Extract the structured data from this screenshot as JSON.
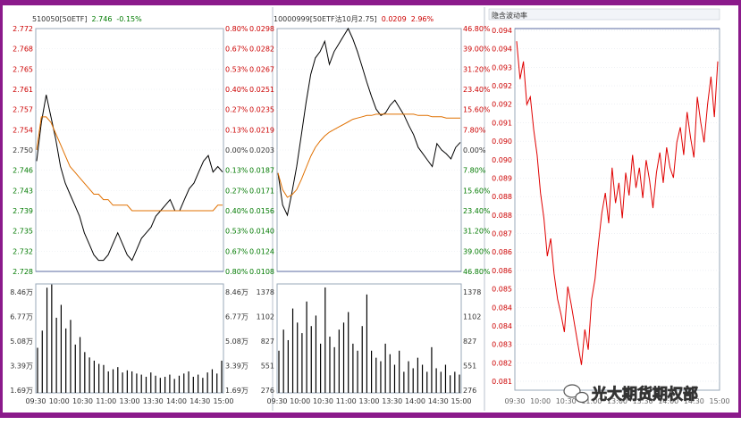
{
  "colors": {
    "frame": "#8b1a8b",
    "axis_red": "#cc0000",
    "axis_green": "#007a00",
    "axis_dark": "#333333",
    "price_line": "#000000",
    "avg_line": "#e07000",
    "vol_bar": "#000000",
    "iv_line": "#e00000",
    "grid": "#9aa8b8"
  },
  "watermark": {
    "icon": "wechat-icon",
    "text": "光大期货期权部"
  },
  "chart_data": [
    {
      "type": "line",
      "panel": "50ETF-intraday",
      "header": {
        "code": "510050[50ETF]",
        "price": "2.746",
        "change": "-0.15%"
      },
      "y_left_ticks": [
        "2.772",
        "2.768",
        "2.765",
        "2.761",
        "2.757",
        "2.754",
        "2.750",
        "2.746",
        "2.743",
        "2.739",
        "2.735",
        "2.732",
        "2.728"
      ],
      "y_right_ticks": [
        "0.80%",
        "0.67%",
        "0.53%",
        "0.40%",
        "0.27%",
        "0.13%",
        "0.00%",
        "0.13%",
        "0.27%",
        "0.40%",
        "0.53%",
        "0.67%",
        "0.80%"
      ],
      "ylim": [
        2.728,
        2.772
      ],
      "prev_close": 2.75,
      "series": [
        {
          "role": "price",
          "values": [
            2.748,
            2.755,
            2.76,
            2.756,
            2.752,
            2.747,
            2.744,
            2.742,
            2.74,
            2.738,
            2.735,
            2.733,
            2.731,
            2.73,
            2.73,
            2.731,
            2.733,
            2.735,
            2.733,
            2.731,
            2.73,
            2.732,
            2.734,
            2.735,
            2.736,
            2.738,
            2.739,
            2.74,
            2.741,
            2.739,
            2.739,
            2.741,
            2.743,
            2.744,
            2.746,
            2.748,
            2.749,
            2.746,
            2.747,
            2.746
          ]
        },
        {
          "role": "avg",
          "values": [
            2.75,
            2.756,
            2.756,
            2.755,
            2.753,
            2.751,
            2.749,
            2.747,
            2.746,
            2.745,
            2.744,
            2.743,
            2.742,
            2.742,
            2.741,
            2.741,
            2.74,
            2.74,
            2.74,
            2.74,
            2.739,
            2.739,
            2.739,
            2.739,
            2.739,
            2.739,
            2.739,
            2.739,
            2.739,
            2.739,
            2.739,
            2.739,
            2.739,
            2.739,
            2.739,
            2.739,
            2.739,
            2.739,
            2.74,
            2.74
          ]
        }
      ],
      "vol_ticks": [
        "8.46万",
        "6.77万",
        "5.08万",
        "3.39万",
        "1.69万"
      ],
      "vol_max": 101500,
      "volume": [
        42000,
        58000,
        98000,
        101000,
        70000,
        82000,
        60000,
        68000,
        45000,
        52000,
        38000,
        33000,
        30000,
        27000,
        26000,
        20000,
        22000,
        24000,
        19000,
        21000,
        20000,
        18000,
        17000,
        15000,
        19000,
        16000,
        14000,
        15000,
        17000,
        13000,
        16000,
        18000,
        20000,
        15000,
        17000,
        14000,
        19000,
        22000,
        18000,
        30000
      ],
      "x_ticks": [
        "09:30",
        "10:00",
        "10:30",
        "11:00",
        "13:00",
        "13:30",
        "14:00",
        "14:30",
        "15:00"
      ]
    },
    {
      "type": "line",
      "panel": "option-intraday",
      "header": {
        "code": "10000999[50ETF沽10月2.75]",
        "price": "0.0209",
        "change": "2.96%"
      },
      "y_left_ticks": [
        "0.0298",
        "0.0282",
        "0.0267",
        "0.0251",
        "0.0235",
        "0.0219",
        "0.0203",
        "0.0187",
        "0.0171",
        "0.0156",
        "0.0140",
        "0.0124",
        "0.0108"
      ],
      "y_right_ticks": [
        "46.80%",
        "39.00%",
        "31.20%",
        "23.40%",
        "15.60%",
        "7.80%",
        "0.00%",
        "7.80%",
        "15.60%",
        "23.40%",
        "31.20%",
        "39.00%",
        "46.80%"
      ],
      "ylim": [
        0.0108,
        0.0298
      ],
      "prev_close": 0.0203,
      "series": [
        {
          "role": "price",
          "values": [
            0.0185,
            0.016,
            0.0152,
            0.017,
            0.019,
            0.0215,
            0.024,
            0.0262,
            0.0275,
            0.028,
            0.0288,
            0.027,
            0.028,
            0.0286,
            0.0292,
            0.0298,
            0.029,
            0.028,
            0.0268,
            0.0256,
            0.0245,
            0.0235,
            0.023,
            0.0232,
            0.0238,
            0.0242,
            0.0236,
            0.023,
            0.0222,
            0.0215,
            0.0205,
            0.02,
            0.0195,
            0.019,
            0.0208,
            0.0203,
            0.02,
            0.0196,
            0.0205,
            0.0209
          ]
        },
        {
          "role": "avg",
          "values": [
            0.0185,
            0.0172,
            0.0166,
            0.0168,
            0.0172,
            0.018,
            0.0189,
            0.0198,
            0.0205,
            0.021,
            0.0214,
            0.0217,
            0.0219,
            0.0221,
            0.0223,
            0.0225,
            0.0227,
            0.0228,
            0.0229,
            0.023,
            0.023,
            0.0231,
            0.0231,
            0.0231,
            0.0231,
            0.0231,
            0.0231,
            0.0231,
            0.0231,
            0.0231,
            0.023,
            0.023,
            0.023,
            0.0229,
            0.0229,
            0.0229,
            0.0228,
            0.0228,
            0.0228,
            0.0228
          ]
        }
      ],
      "vol_ticks": [
        "1378",
        "1102",
        "827",
        "551",
        "276"
      ],
      "vol_max": 1550,
      "volume": [
        600,
        900,
        750,
        1200,
        1000,
        850,
        1300,
        950,
        1100,
        700,
        1500,
        800,
        650,
        900,
        1000,
        1150,
        700,
        600,
        950,
        1400,
        600,
        500,
        450,
        700,
        550,
        400,
        600,
        300,
        450,
        350,
        500,
        400,
        300,
        650,
        350,
        300,
        400,
        250,
        300,
        260
      ],
      "x_ticks": [
        "09:30",
        "10:00",
        "10:30",
        "11:00",
        "13:00",
        "13:30",
        "14:00",
        "14:30",
        "15:00"
      ]
    },
    {
      "type": "line",
      "panel": "implied-volatility",
      "header": {
        "title": "隐含波动率"
      },
      "y_left_ticks": [
        "0.094",
        "0.094",
        "0.093",
        "0.092",
        "0.092",
        "0.091",
        "0.090",
        "0.090",
        "0.089",
        "0.088",
        "0.088",
        "0.087",
        "0.086",
        "0.086",
        "0.085",
        "0.084",
        "0.084",
        "0.083",
        "0.082",
        "0.081"
      ],
      "ylim": [
        0.0802,
        0.0945
      ],
      "series": [
        {
          "role": "iv",
          "values": [
            0.094,
            0.0925,
            0.0932,
            0.0915,
            0.0918,
            0.0905,
            0.0895,
            0.088,
            0.087,
            0.0855,
            0.0862,
            0.0848,
            0.0838,
            0.0832,
            0.0825,
            0.0843,
            0.0836,
            0.0828,
            0.082,
            0.0812,
            0.0826,
            0.0818,
            0.0838,
            0.0846,
            0.086,
            0.0872,
            0.088,
            0.0868,
            0.089,
            0.0876,
            0.0884,
            0.087,
            0.0888,
            0.0879,
            0.0895,
            0.0882,
            0.089,
            0.0878,
            0.0893,
            0.0885,
            0.0874,
            0.0888,
            0.0896,
            0.0884,
            0.0898,
            0.089,
            0.0886,
            0.09,
            0.0906,
            0.0895,
            0.0912,
            0.0902,
            0.0894,
            0.0918,
            0.0908,
            0.09,
            0.0915,
            0.0926,
            0.091,
            0.0932
          ]
        }
      ],
      "x_ticks": [
        "09:30",
        "10:00",
        "10:30",
        "11:00",
        "13:00",
        "13:30",
        "14:00",
        "14:30",
        "15:00"
      ]
    }
  ]
}
